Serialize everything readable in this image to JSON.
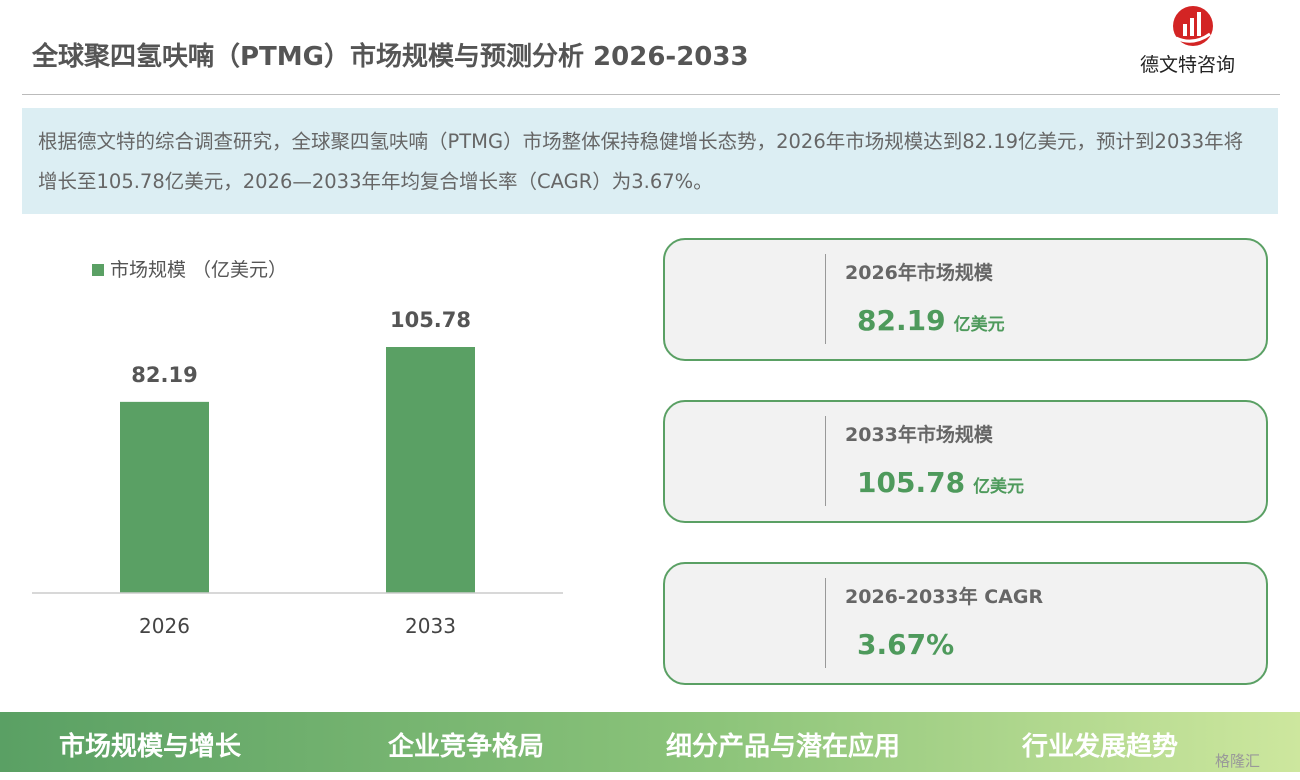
{
  "header": {
    "title": "全球聚四氢呋喃（PTMG）市场规模与预测分析 2026-2033",
    "brand": "德文特咨询"
  },
  "summary": "根据德文特的综合调查研究，全球聚四氢呋喃（PTMG）市场整体保持稳健增长态势，2026年市场规模达到82.19亿美元，预计到2033年将增长至105.78亿美元，2026—2033年年均复合增长率（CAGR）为3.67%。",
  "chart_data": {
    "type": "bar",
    "categories": [
      "2026",
      "2033"
    ],
    "series": [
      {
        "name": "市场规模 （亿美元）",
        "color": "#5aa064",
        "values": [
          82.19,
          105.78
        ]
      }
    ]
  },
  "cards": [
    {
      "title": "2026年市场规模",
      "value": "82.19",
      "unit": "亿美元"
    },
    {
      "title": "2033年市场规模",
      "value": "105.78",
      "unit": "亿美元"
    },
    {
      "title": "2026-2033年 CAGR",
      "value": "3.67%"
    }
  ],
  "footer": [
    "市场规模与增长",
    "企业竞争格局",
    "细分产品与潜在应用",
    "行业发展趋势"
  ],
  "watermark": "格隆汇"
}
